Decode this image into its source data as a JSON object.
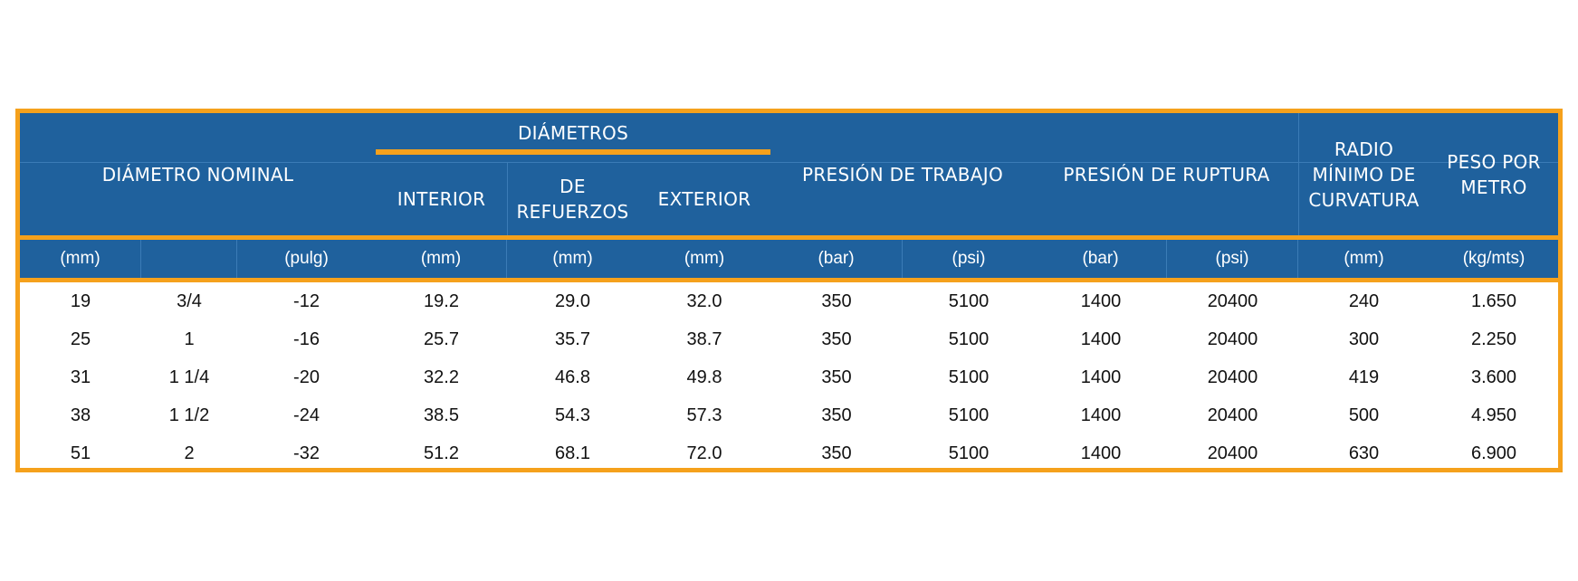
{
  "table": {
    "headers": {
      "diametro_nominal": "DIÁMETRO NOMINAL",
      "diametros": "DIÁMETROS",
      "interior": "INTERIOR",
      "de_refuerzos": "DE\nREFUERZOS",
      "exterior": "EXTERIOR",
      "presion_trabajo": "PRESIÓN DE TRABAJO",
      "presion_ruptura": "PRESIÓN DE RUPTURA",
      "radio_minimo": "RADIO\nMÍNIMO DE\nCURVATURA",
      "peso_por_metro": "PESO POR\nMETRO"
    },
    "units": [
      "(mm)",
      "",
      "(pulg)",
      "(mm)",
      "(mm)",
      "(mm)",
      "(bar)",
      "(psi)",
      "(bar)",
      "(psi)",
      "(mm)",
      "(kg/mts)"
    ],
    "rows": [
      [
        "19",
        "3/4",
        "-12",
        "19.2",
        "29.0",
        "32.0",
        "350",
        "5100",
        "1400",
        "20400",
        "240",
        "1.650"
      ],
      [
        "25",
        "1",
        "-16",
        "25.7",
        "35.7",
        "38.7",
        "350",
        "5100",
        "1400",
        "20400",
        "300",
        "2.250"
      ],
      [
        "31",
        "1 1/4",
        "-20",
        "32.2",
        "46.8",
        "49.8",
        "350",
        "5100",
        "1400",
        "20400",
        "419",
        "3.600"
      ],
      [
        "38",
        "1 1/2",
        "-24",
        "38.5",
        "54.3",
        "57.3",
        "350",
        "5100",
        "1400",
        "20400",
        "500",
        "4.950"
      ],
      [
        "51",
        "2",
        "-32",
        "51.2",
        "68.1",
        "72.0",
        "350",
        "5100",
        "1400",
        "20400",
        "630",
        "6.900"
      ]
    ]
  },
  "colors": {
    "header_blue": "#1f619d",
    "border_orange": "#f5a11c",
    "header_text": "#ffffff",
    "body_text": "#111111"
  }
}
